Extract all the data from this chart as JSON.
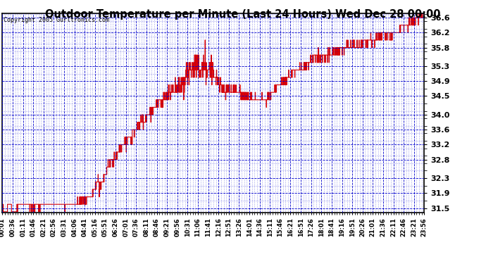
{
  "title": "Outdoor Temperature per Minute (Last 24 Hours) Wed Dec 28 00:00",
  "copyright": "Copyright 2005 Gurltronics.com",
  "line_color": "#dd0000",
  "plot_bg_color": "#ffffff",
  "grid_color": "#0000cc",
  "outer_bg": "#ffffff",
  "yticks": [
    31.5,
    31.9,
    32.3,
    32.8,
    33.2,
    33.6,
    34.0,
    34.5,
    34.9,
    35.3,
    35.8,
    36.2,
    36.6
  ],
  "ymin": 31.38,
  "ymax": 36.72,
  "xtick_labels": [
    "00:01",
    "00:36",
    "01:11",
    "01:46",
    "02:21",
    "02:56",
    "03:31",
    "04:06",
    "04:41",
    "05:16",
    "05:51",
    "06:26",
    "07:01",
    "07:36",
    "08:11",
    "08:46",
    "09:21",
    "09:56",
    "10:31",
    "11:06",
    "11:41",
    "12:16",
    "12:51",
    "13:26",
    "14:01",
    "14:36",
    "15:11",
    "15:46",
    "16:21",
    "16:51",
    "17:26",
    "18:01",
    "18:41",
    "19:16",
    "19:51",
    "20:26",
    "21:01",
    "21:36",
    "22:11",
    "22:46",
    "23:21",
    "23:56"
  ]
}
